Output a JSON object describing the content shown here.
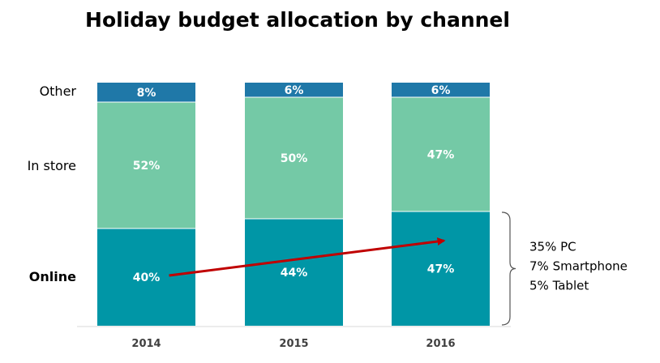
{
  "chart_data": {
    "type": "bar",
    "stacked": true,
    "title": "Holiday budget allocation by channel",
    "categories": [
      "2014",
      "2015",
      "2016"
    ],
    "series": [
      {
        "name": "Online",
        "values": [
          40,
          44,
          47
        ],
        "labels": [
          "40%",
          "44%",
          "47%"
        ],
        "color": "#0096a6",
        "emphasis": true
      },
      {
        "name": "In store",
        "values": [
          52,
          50,
          47
        ],
        "labels": [
          "52%",
          "50%",
          "47%"
        ],
        "color": "#74c9a6"
      },
      {
        "name": "Other",
        "values": [
          8,
          6,
          6
        ],
        "labels": [
          "8%",
          "6%",
          "6%"
        ],
        "color": "#1f78a8"
      }
    ],
    "ylim": [
      0,
      100
    ],
    "grid": false,
    "legend": "left",
    "annotations": {
      "arrow": {
        "from_category": "2014",
        "to_category": "2016",
        "series": "Online",
        "color": "#c00000"
      },
      "breakdown": {
        "category": "2016",
        "series": "Online",
        "lines": [
          "35% PC",
          "7% Smartphone",
          "5% Tablet"
        ]
      }
    }
  }
}
